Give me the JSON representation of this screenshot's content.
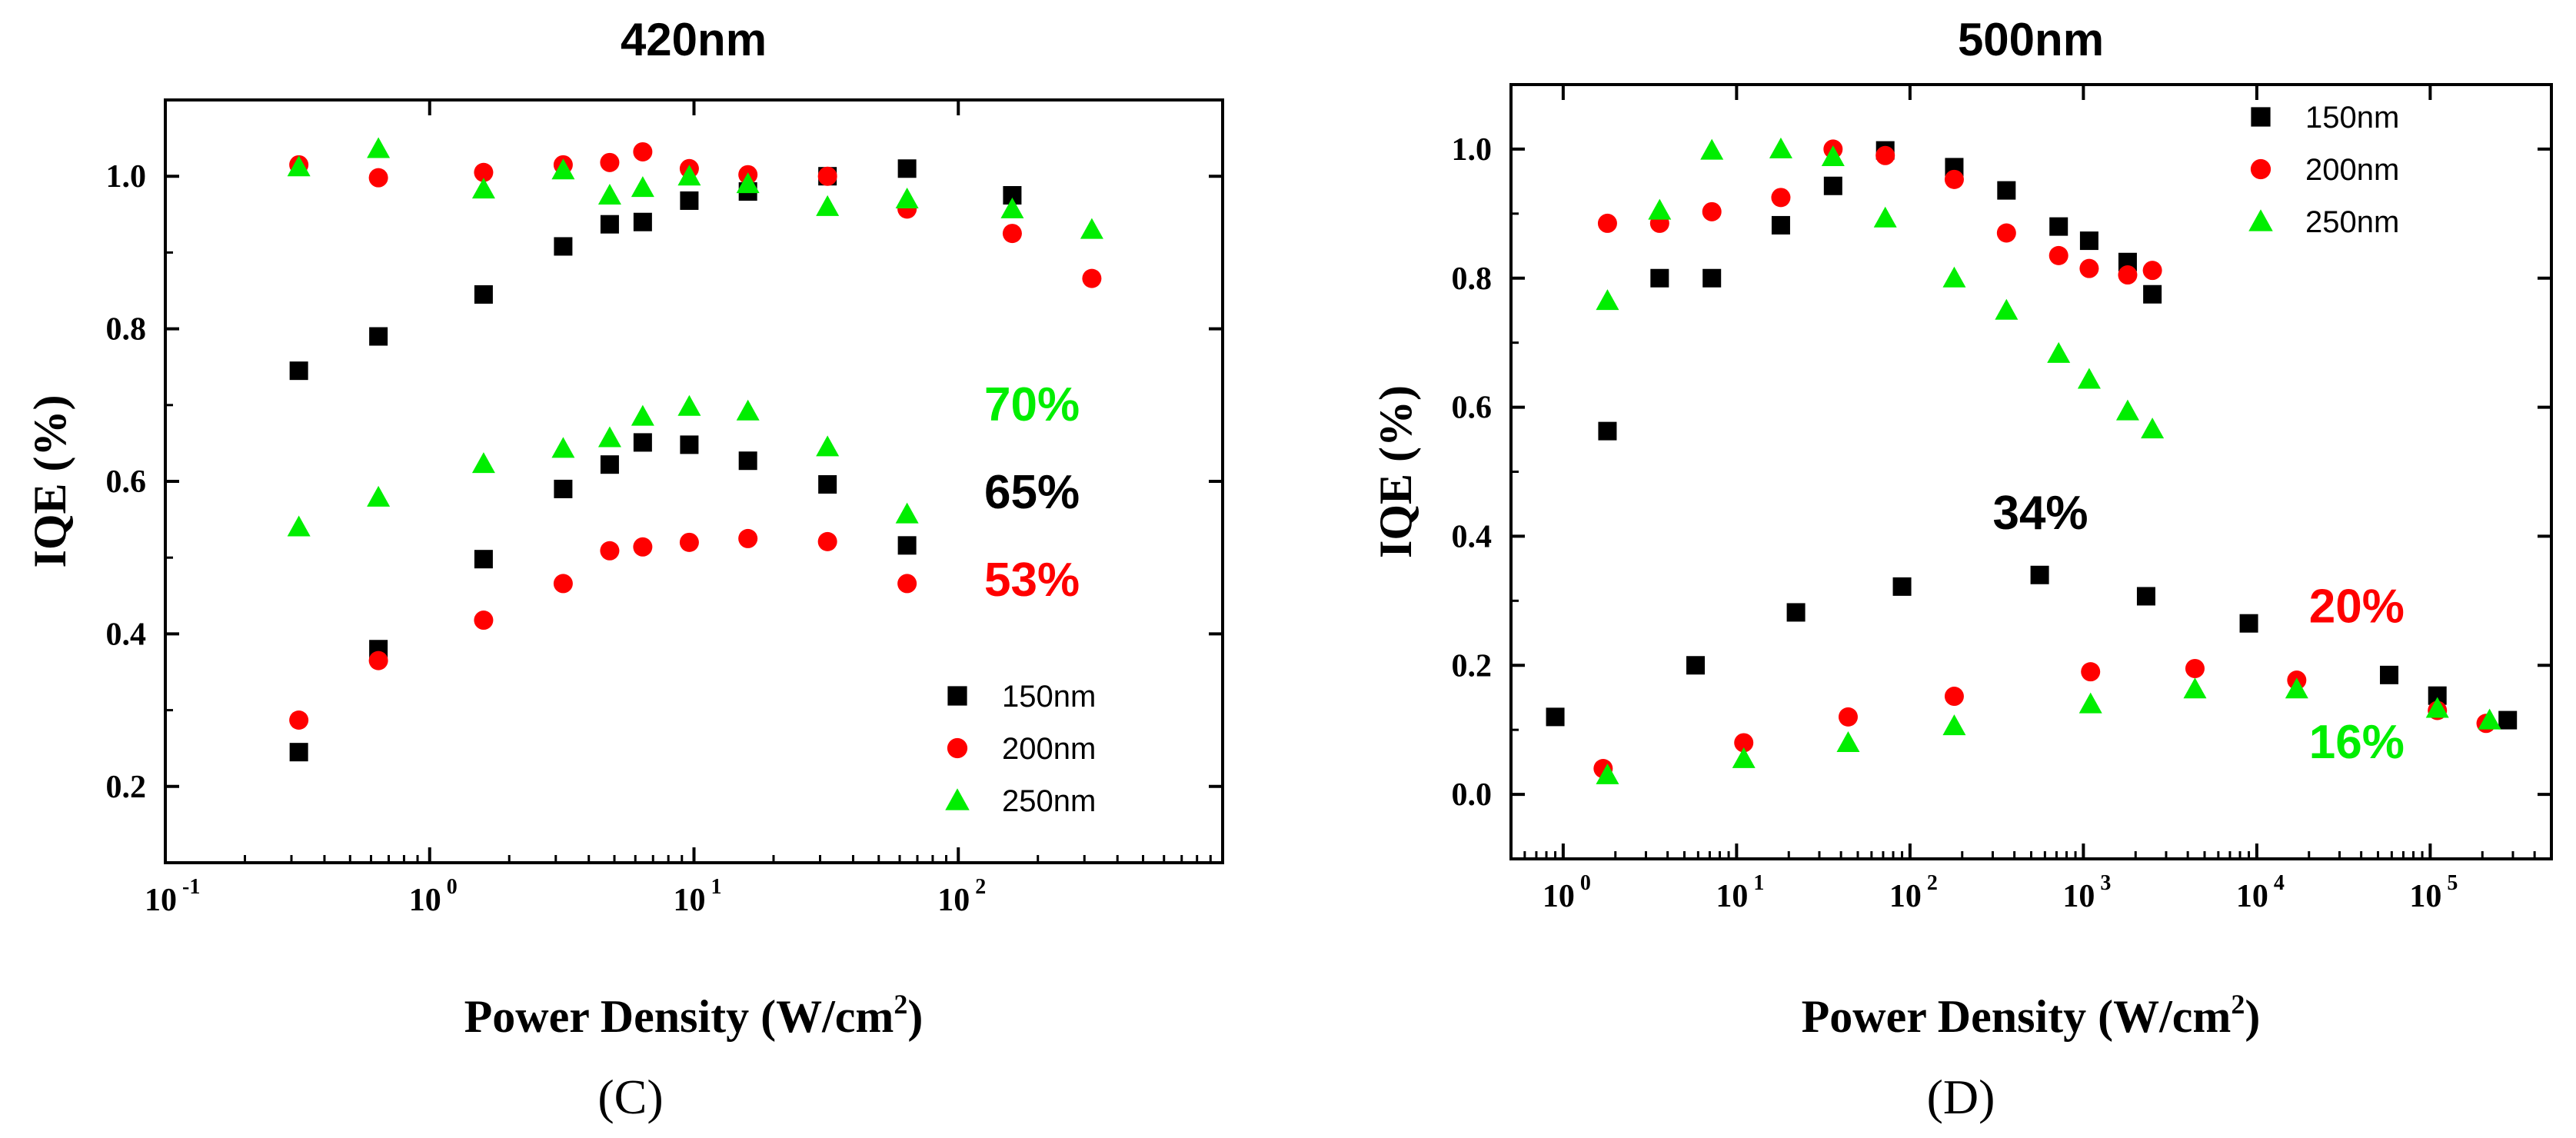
{
  "chart_data": [
    {
      "type": "scatter",
      "title": "420nm",
      "xlabel": "Power Density (W/cm",
      "xlabel_sup": "2",
      "xlabel_end": ")",
      "ylabel": "IQE (%)",
      "panel_label": "(C)",
      "xscale": "log",
      "xlim": [
        0.1,
        1000
      ],
      "ylim": [
        0.1,
        1.1
      ],
      "xticks": [
        {
          "base": "10",
          "exp": "-1"
        },
        {
          "base": "10",
          "exp": "0"
        },
        {
          "base": "10",
          "exp": "1"
        },
        {
          "base": "10",
          "exp": "2"
        }
      ],
      "yticks": [
        "0.2",
        "0.4",
        "0.6",
        "0.8",
        "1.0"
      ],
      "legend_position": "bottom-right",
      "series": [
        {
          "name": "150nm",
          "color": "#000000",
          "marker": "square",
          "points": [
            [
              0.32,
              0.745
            ],
            [
              0.64,
              0.79
            ],
            [
              1.6,
              0.845
            ],
            [
              3.2,
              0.908
            ],
            [
              4.8,
              0.937
            ],
            [
              6.4,
              0.94
            ],
            [
              9.6,
              0.968
            ],
            [
              16,
              0.98
            ],
            [
              32,
              1.0
            ],
            [
              64,
              1.01
            ],
            [
              160,
              0.975
            ],
            [
              0.32,
              0.245
            ],
            [
              0.64,
              0.38
            ],
            [
              1.6,
              0.498
            ],
            [
              3.2,
              0.59
            ],
            [
              4.8,
              0.622
            ],
            [
              6.4,
              0.651
            ],
            [
              9.6,
              0.648
            ],
            [
              16,
              0.627
            ],
            [
              32,
              0.596
            ],
            [
              64,
              0.516
            ]
          ]
        },
        {
          "name": "200nm",
          "color": "#ff0000",
          "marker": "circle",
          "points": [
            [
              0.32,
              1.015
            ],
            [
              0.64,
              0.998
            ],
            [
              1.6,
              1.005
            ],
            [
              3.2,
              1.015
            ],
            [
              4.8,
              1.018
            ],
            [
              6.4,
              1.032
            ],
            [
              9.6,
              1.01
            ],
            [
              16,
              1.002
            ],
            [
              32,
              1.0
            ],
            [
              64,
              0.957
            ],
            [
              160,
              0.925
            ],
            [
              320,
              0.866
            ],
            [
              0.32,
              0.287
            ],
            [
              0.64,
              0.365
            ],
            [
              1.6,
              0.418
            ],
            [
              3.2,
              0.466
            ],
            [
              4.8,
              0.509
            ],
            [
              6.4,
              0.514
            ],
            [
              9.6,
              0.52
            ],
            [
              16,
              0.525
            ],
            [
              32,
              0.521
            ],
            [
              64,
              0.466
            ]
          ]
        },
        {
          "name": "250nm",
          "color": "#00ee00",
          "marker": "triangle",
          "points": [
            [
              0.32,
              1.012
            ],
            [
              0.64,
              1.036
            ],
            [
              1.6,
              0.983
            ],
            [
              3.2,
              1.008
            ],
            [
              4.8,
              0.975
            ],
            [
              6.4,
              0.985
            ],
            [
              9.6,
              1.0
            ],
            [
              16,
              0.99
            ],
            [
              32,
              0.96
            ],
            [
              64,
              0.97
            ],
            [
              160,
              0.957
            ],
            [
              320,
              0.93
            ],
            [
              0.32,
              0.54
            ],
            [
              0.64,
              0.579
            ],
            [
              1.6,
              0.623
            ],
            [
              3.2,
              0.643
            ],
            [
              4.8,
              0.657
            ],
            [
              6.4,
              0.685
            ],
            [
              9.6,
              0.698
            ],
            [
              16,
              0.692
            ],
            [
              32,
              0.645
            ],
            [
              64,
              0.557
            ]
          ]
        }
      ],
      "annotations": [
        {
          "text": "70%",
          "color": "#00ee00",
          "x": 130,
          "y": 0.7
        },
        {
          "text": "65%",
          "color": "#000000",
          "x": 130,
          "y": 0.585
        },
        {
          "text": "53%",
          "color": "#ff0000",
          "x": 130,
          "y": 0.47
        }
      ]
    },
    {
      "type": "scatter",
      "title": "500nm",
      "xlabel": "Power Density (W/cm",
      "xlabel_sup": "2",
      "xlabel_end": ")",
      "ylabel": "IQE (%)",
      "panel_label": "(D)",
      "xscale": "log",
      "xlim": [
        0.5,
        500000
      ],
      "ylim": [
        -0.1,
        1.1
      ],
      "xticks": [
        {
          "base": "10",
          "exp": "0"
        },
        {
          "base": "10",
          "exp": "1"
        },
        {
          "base": "10",
          "exp": "2"
        },
        {
          "base": "10",
          "exp": "3"
        },
        {
          "base": "10",
          "exp": "4"
        },
        {
          "base": "10",
          "exp": "5"
        }
      ],
      "yticks": [
        "0.0",
        "0.2",
        "0.4",
        "0.6",
        "0.8",
        "1.0"
      ],
      "legend_position": "top-right",
      "series": [
        {
          "name": "150nm",
          "color": "#000000",
          "marker": "square",
          "points": [
            [
              1.8,
              0.563
            ],
            [
              3.6,
              0.8
            ],
            [
              7.2,
              0.8
            ],
            [
              18,
              0.882
            ],
            [
              36,
              0.943
            ],
            [
              72,
              0.998
            ],
            [
              180,
              0.972
            ],
            [
              360,
              0.936
            ],
            [
              720,
              0.88
            ],
            [
              1080,
              0.858
            ],
            [
              1800,
              0.825
            ],
            [
              2500,
              0.775
            ],
            [
              0.9,
              0.12
            ],
            [
              5.8,
              0.2
            ],
            [
              22,
              0.282
            ],
            [
              90,
              0.322
            ],
            [
              560,
              0.34
            ],
            [
              2300,
              0.307
            ],
            [
              9000,
              0.265
            ],
            [
              58000,
              0.185
            ],
            [
              110000,
              0.153
            ],
            [
              280000,
              0.115
            ]
          ]
        },
        {
          "name": "200nm",
          "color": "#ff0000",
          "marker": "circle",
          "points": [
            [
              1.8,
              0.885
            ],
            [
              3.6,
              0.885
            ],
            [
              7.2,
              0.903
            ],
            [
              18,
              0.925
            ],
            [
              36,
              1.0
            ],
            [
              72,
              0.99
            ],
            [
              180,
              0.953
            ],
            [
              360,
              0.87
            ],
            [
              720,
              0.835
            ],
            [
              1080,
              0.815
            ],
            [
              1800,
              0.805
            ],
            [
              2500,
              0.812
            ],
            [
              1.7,
              0.04
            ],
            [
              11,
              0.08
            ],
            [
              44,
              0.12
            ],
            [
              180,
              0.152
            ],
            [
              1100,
              0.19
            ],
            [
              4400,
              0.195
            ],
            [
              17000,
              0.177
            ],
            [
              110000,
              0.13
            ],
            [
              210000,
              0.11
            ]
          ]
        },
        {
          "name": "250nm",
          "color": "#00ee00",
          "marker": "triangle",
          "points": [
            [
              1.8,
              0.765
            ],
            [
              3.6,
              0.905
            ],
            [
              7.2,
              0.998
            ],
            [
              18,
              1.0
            ],
            [
              36,
              0.988
            ],
            [
              72,
              0.893
            ],
            [
              180,
              0.8
            ],
            [
              360,
              0.75
            ],
            [
              720,
              0.683
            ],
            [
              1080,
              0.643
            ],
            [
              1800,
              0.594
            ],
            [
              2500,
              0.566
            ],
            [
              1.8,
              0.03
            ],
            [
              11,
              0.055
            ],
            [
              44,
              0.08
            ],
            [
              180,
              0.106
            ],
            [
              1100,
              0.14
            ],
            [
              4400,
              0.163
            ],
            [
              17000,
              0.163
            ],
            [
              110000,
              0.133
            ],
            [
              220000,
              0.115
            ]
          ]
        }
      ],
      "annotations": [
        {
          "text": "34%",
          "color": "#000000",
          "x": 300,
          "y": 0.435
        },
        {
          "text": "20%",
          "color": "#ff0000",
          "x": 20000,
          "y": 0.29
        },
        {
          "text": "16%",
          "color": "#00ee00",
          "x": 20000,
          "y": 0.08
        }
      ]
    }
  ]
}
